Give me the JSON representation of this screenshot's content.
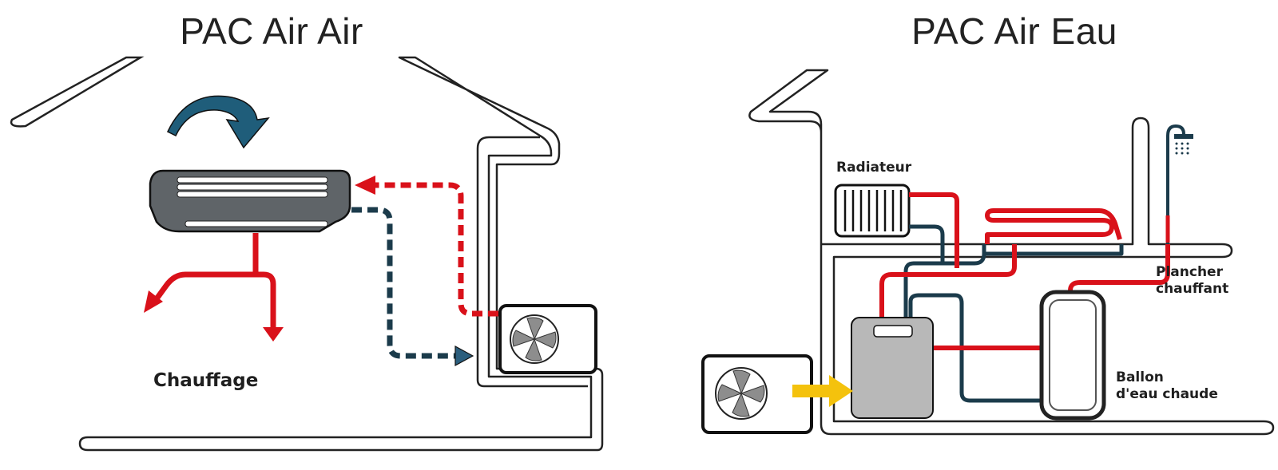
{
  "left_panel": {
    "title": "PAC Air Air",
    "label_heating": "Chauffage"
  },
  "right_panel": {
    "title": "PAC Air Eau",
    "label_radiator": "Radiateur",
    "label_floor_heating_line1": "Plancher",
    "label_floor_heating_line2": "chauffant",
    "label_tank_line1": "Ballon",
    "label_tank_line2": "d'eau chaude"
  },
  "colors": {
    "hot": "#d9111a",
    "cold": "#1b3b4b",
    "indoor_unit": "#5f6468",
    "boiler": "#b8b8b8",
    "air_flow": "#f4c20d",
    "rotation_arrow": "#1f5d7a",
    "outline": "#222222"
  }
}
